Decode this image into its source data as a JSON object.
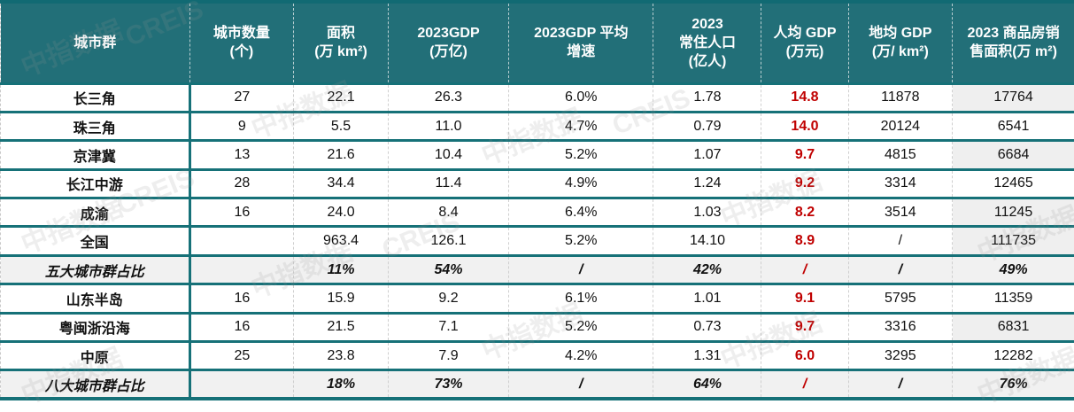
{
  "table": {
    "headers": [
      [
        "城市群"
      ],
      [
        "城市数量",
        "(个)"
      ],
      [
        "面积",
        "(万 km²)"
      ],
      [
        "2023GDP",
        "(万亿)"
      ],
      [
        "2023GDP 平均",
        "增速"
      ],
      [
        "2023",
        "常住人口",
        "(亿人)"
      ],
      [
        "人均 GDP",
        "(万元)"
      ],
      [
        "地均 GDP",
        "(万/ km²)"
      ],
      [
        "2023 商品房销",
        "售面积(万 m²)"
      ]
    ],
    "rows": [
      {
        "name": "长三角",
        "cities": "27",
        "area": "22.1",
        "gdp": "26.3",
        "growth": "6.0%",
        "pop": "1.78",
        "gdp_per_capita": "14.8",
        "gdp_per_area": "11878",
        "sales_area": "17764"
      },
      {
        "name": "珠三角",
        "cities": "9",
        "area": "5.5",
        "gdp": "11.0",
        "growth": "4.7%",
        "pop": "0.79",
        "gdp_per_capita": "14.0",
        "gdp_per_area": "20124",
        "sales_area": "6541"
      },
      {
        "name": "京津冀",
        "cities": "13",
        "area": "21.6",
        "gdp": "10.4",
        "growth": "5.2%",
        "pop": "1.07",
        "gdp_per_capita": "9.7",
        "gdp_per_area": "4815",
        "sales_area": "6684"
      },
      {
        "name": "长江中游",
        "cities": "28",
        "area": "34.4",
        "gdp": "11.4",
        "growth": "4.9%",
        "pop": "1.24",
        "gdp_per_capita": "9.2",
        "gdp_per_area": "3314",
        "sales_area": "12465"
      },
      {
        "name": "成渝",
        "cities": "16",
        "area": "24.0",
        "gdp": "8.4",
        "growth": "6.4%",
        "pop": "1.03",
        "gdp_per_capita": "8.2",
        "gdp_per_area": "3514",
        "sales_area": "11245"
      },
      {
        "name": "全国",
        "cities": "",
        "area": "963.4",
        "gdp": "126.1",
        "growth": "5.2%",
        "pop": "14.10",
        "gdp_per_capita": "8.9",
        "gdp_per_area": "/",
        "sales_area": "111735"
      },
      {
        "name": "五大城市群占比",
        "cities": "",
        "area": "11%",
        "gdp": "54%",
        "growth": "/",
        "pop": "42%",
        "gdp_per_capita": "/",
        "gdp_per_area": "/",
        "sales_area": "49%"
      },
      {
        "name": "山东半岛",
        "cities": "16",
        "area": "15.9",
        "gdp": "9.2",
        "growth": "6.1%",
        "pop": "1.01",
        "gdp_per_capita": "9.1",
        "gdp_per_area": "5795",
        "sales_area": "11359"
      },
      {
        "name": "粤闽浙沿海",
        "cities": "16",
        "area": "21.5",
        "gdp": "7.1",
        "growth": "5.2%",
        "pop": "0.73",
        "gdp_per_capita": "9.7",
        "gdp_per_area": "3316",
        "sales_area": "6831"
      },
      {
        "name": "中原",
        "cities": "25",
        "area": "23.8",
        "gdp": "7.9",
        "growth": "4.2%",
        "pop": "1.31",
        "gdp_per_capita": "6.0",
        "gdp_per_area": "3295",
        "sales_area": "12282"
      },
      {
        "name": "八大城市群占比",
        "cities": "",
        "area": "18%",
        "gdp": "73%",
        "growth": "/",
        "pop": "64%",
        "gdp_per_capita": "/",
        "gdp_per_area": "/",
        "sales_area": "76%"
      }
    ]
  },
  "watermark": {
    "text_cn": "中指数据",
    "text_en": "CREIS"
  },
  "colors": {
    "header_bg": "#226f78",
    "border": "#167178",
    "highlight_red": "#c00000",
    "share_row_bg": "#f1f1f1"
  }
}
